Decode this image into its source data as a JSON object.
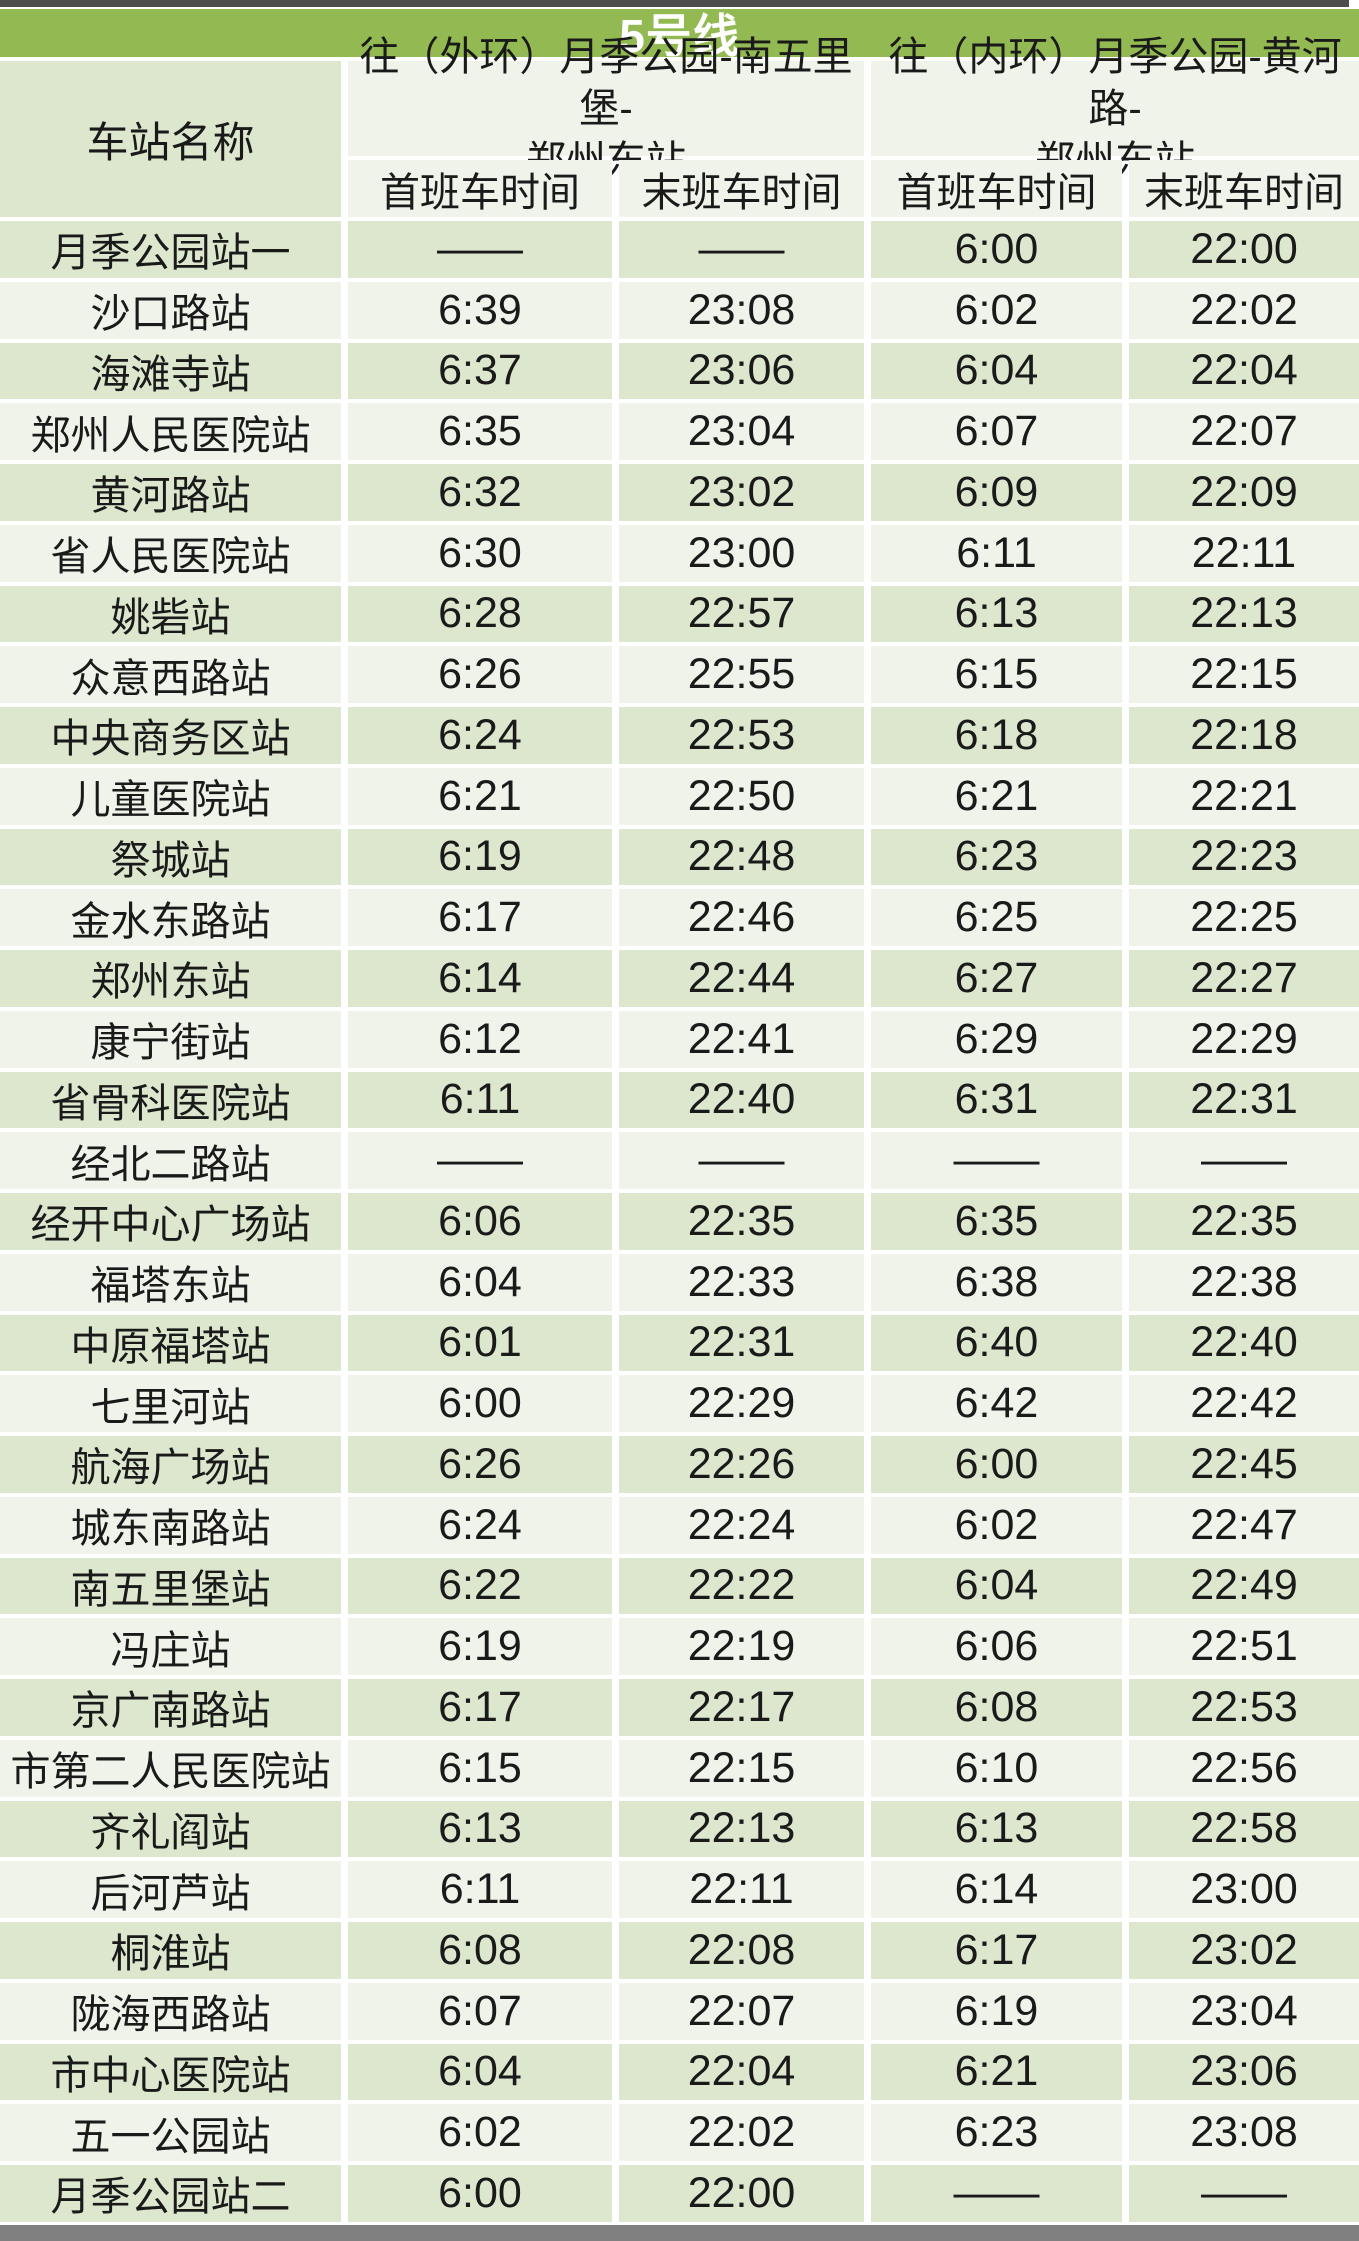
{
  "title": "5号线",
  "colors": {
    "title_bar_green": "#92b952",
    "band_dark": "#dce7ce",
    "band_light": "#eff3e9",
    "top_strip_gray": "#4c4c4c",
    "bottom_strip_gray": "#808080",
    "title_text": "#ffffff",
    "body_text": "#1a1a1a"
  },
  "table": {
    "station_col_header": "车站名称",
    "direction_groups": [
      {
        "label": "往（外环）月季公园-南五里堡-\n郑州东站",
        "sub": [
          "首班车时间",
          "末班车时间"
        ]
      },
      {
        "label": "往（内环）月季公园-黄河路-\n郑州东站",
        "sub": [
          "首班车时间",
          "末班车时间"
        ]
      }
    ],
    "rows": [
      {
        "station": "月季公园站一",
        "times": [
          "——",
          "——",
          "6:00",
          "22:00"
        ]
      },
      {
        "station": "沙口路站",
        "times": [
          "6:39",
          "23:08",
          "6:02",
          "22:02"
        ]
      },
      {
        "station": "海滩寺站",
        "times": [
          "6:37",
          "23:06",
          "6:04",
          "22:04"
        ]
      },
      {
        "station": "郑州人民医院站",
        "times": [
          "6:35",
          "23:04",
          "6:07",
          "22:07"
        ]
      },
      {
        "station": "黄河路站",
        "times": [
          "6:32",
          "23:02",
          "6:09",
          "22:09"
        ]
      },
      {
        "station": "省人民医院站",
        "times": [
          "6:30",
          "23:00",
          "6:11",
          "22:11"
        ]
      },
      {
        "station": "姚砦站",
        "times": [
          "6:28",
          "22:57",
          "6:13",
          "22:13"
        ]
      },
      {
        "station": "众意西路站",
        "times": [
          "6:26",
          "22:55",
          "6:15",
          "22:15"
        ]
      },
      {
        "station": "中央商务区站",
        "times": [
          "6:24",
          "22:53",
          "6:18",
          "22:18"
        ]
      },
      {
        "station": "儿童医院站",
        "times": [
          "6:21",
          "22:50",
          "6:21",
          "22:21"
        ]
      },
      {
        "station": "祭城站",
        "times": [
          "6:19",
          "22:48",
          "6:23",
          "22:23"
        ]
      },
      {
        "station": "金水东路站",
        "times": [
          "6:17",
          "22:46",
          "6:25",
          "22:25"
        ]
      },
      {
        "station": "郑州东站",
        "times": [
          "6:14",
          "22:44",
          "6:27",
          "22:27"
        ]
      },
      {
        "station": "康宁街站",
        "times": [
          "6:12",
          "22:41",
          "6:29",
          "22:29"
        ]
      },
      {
        "station": "省骨科医院站",
        "times": [
          "6:11",
          "22:40",
          "6:31",
          "22:31"
        ]
      },
      {
        "station": "经北二路站",
        "times": [
          "——",
          "——",
          "——",
          "——"
        ]
      },
      {
        "station": "经开中心广场站",
        "times": [
          "6:06",
          "22:35",
          "6:35",
          "22:35"
        ]
      },
      {
        "station": "福塔东站",
        "times": [
          "6:04",
          "22:33",
          "6:38",
          "22:38"
        ]
      },
      {
        "station": "中原福塔站",
        "times": [
          "6:01",
          "22:31",
          "6:40",
          "22:40"
        ]
      },
      {
        "station": "七里河站",
        "times": [
          "6:00",
          "22:29",
          "6:42",
          "22:42"
        ]
      },
      {
        "station": "航海广场站",
        "times": [
          "6:26",
          "22:26",
          "6:00",
          "22:45"
        ]
      },
      {
        "station": "城东南路站",
        "times": [
          "6:24",
          "22:24",
          "6:02",
          "22:47"
        ]
      },
      {
        "station": "南五里堡站",
        "times": [
          "6:22",
          "22:22",
          "6:04",
          "22:49"
        ]
      },
      {
        "station": "冯庄站",
        "times": [
          "6:19",
          "22:19",
          "6:06",
          "22:51"
        ]
      },
      {
        "station": "京广南路站",
        "times": [
          "6:17",
          "22:17",
          "6:08",
          "22:53"
        ]
      },
      {
        "station": "市第二人民医院站",
        "times": [
          "6:15",
          "22:15",
          "6:10",
          "22:56"
        ]
      },
      {
        "station": "齐礼阎站",
        "times": [
          "6:13",
          "22:13",
          "6:13",
          "22:58"
        ]
      },
      {
        "station": "后河芦站",
        "times": [
          "6:11",
          "22:11",
          "6:14",
          "23:00"
        ]
      },
      {
        "station": "桐淮站",
        "times": [
          "6:08",
          "22:08",
          "6:17",
          "23:02"
        ]
      },
      {
        "station": "陇海西路站",
        "times": [
          "6:07",
          "22:07",
          "6:19",
          "23:04"
        ]
      },
      {
        "station": "市中心医院站",
        "times": [
          "6:04",
          "22:04",
          "6:21",
          "23:06"
        ]
      },
      {
        "station": "五一公园站",
        "times": [
          "6:02",
          "22:02",
          "6:23",
          "23:08"
        ]
      },
      {
        "station": "月季公园站二",
        "times": [
          "6:00",
          "22:00",
          "——",
          "——"
        ]
      }
    ]
  }
}
